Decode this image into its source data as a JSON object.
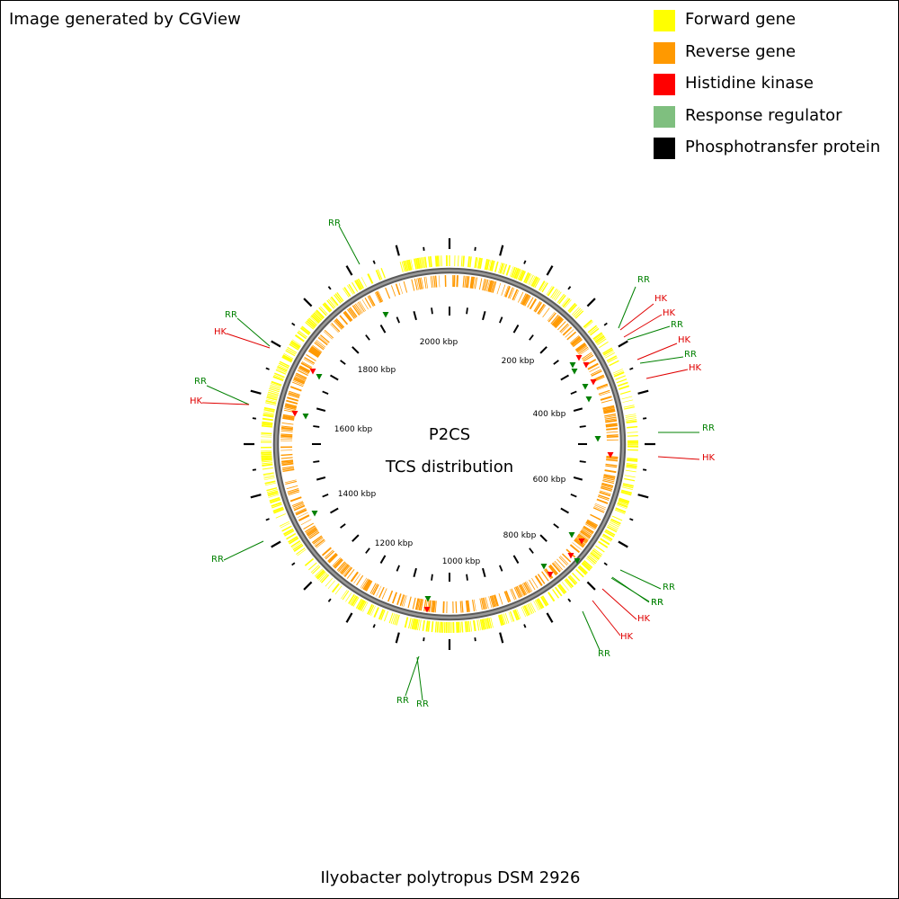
{
  "credit": "Image generated by CGView",
  "legend": [
    {
      "label": "Forward gene",
      "color": "#ffff00",
      "icon": "square"
    },
    {
      "label": "Reverse gene",
      "color": "#ff9900",
      "icon": "square"
    },
    {
      "label": "Histidine kinase",
      "color": "#ff0000",
      "icon": "square"
    },
    {
      "label": "Response regulator",
      "color": "#7fbf7f",
      "icon": "square"
    },
    {
      "label": "Phosphotransfer protein",
      "color": "#000000",
      "icon": "square"
    }
  ],
  "map": {
    "title": "P2CS",
    "subtitle": "TCS distribution",
    "organism": "Ilyobacter polytropus DSM 2926",
    "tick_labels": [
      "200 kbp",
      "400 kbp",
      "600 kbp",
      "800 kbp",
      "1000 kbp",
      "1200 kbp",
      "1400 kbp",
      "1600 kbp",
      "1800 kbp",
      "2000 kbp"
    ],
    "callouts": [
      {
        "text": "RR",
        "type": "RR"
      },
      {
        "text": "RR",
        "type": "RR"
      },
      {
        "text": "HK",
        "type": "HK"
      },
      {
        "text": "RR",
        "type": "RR"
      },
      {
        "text": "HK",
        "type": "HK"
      },
      {
        "text": "RR",
        "type": "RR"
      },
      {
        "text": "HK",
        "type": "HK"
      },
      {
        "text": "HK",
        "type": "HK"
      },
      {
        "text": "RR",
        "type": "RR"
      },
      {
        "text": "HK",
        "type": "HK"
      },
      {
        "text": "RR",
        "type": "RR"
      },
      {
        "text": "HK",
        "type": "HK"
      },
      {
        "text": "RR",
        "type": "RR"
      },
      {
        "text": "HK",
        "type": "HK"
      },
      {
        "text": "RR",
        "type": "RR"
      },
      {
        "text": "RR",
        "type": "RR"
      },
      {
        "text": "RR",
        "type": "RR"
      },
      {
        "text": "RR",
        "type": "RR"
      },
      {
        "text": "HK",
        "type": "HK"
      },
      {
        "text": "RR",
        "type": "RR"
      },
      {
        "text": "HK",
        "type": "HK"
      },
      {
        "text": "RR",
        "type": "RR"
      },
      {
        "text": "RR",
        "type": "RR"
      }
    ]
  },
  "colors": {
    "forward": "#ffff00",
    "reverse": "#ff9900",
    "hk": "#ff0000",
    "rr": "#008000",
    "backbone": "#808080",
    "hk_label": "#e00000",
    "rr_label": "#008000"
  }
}
